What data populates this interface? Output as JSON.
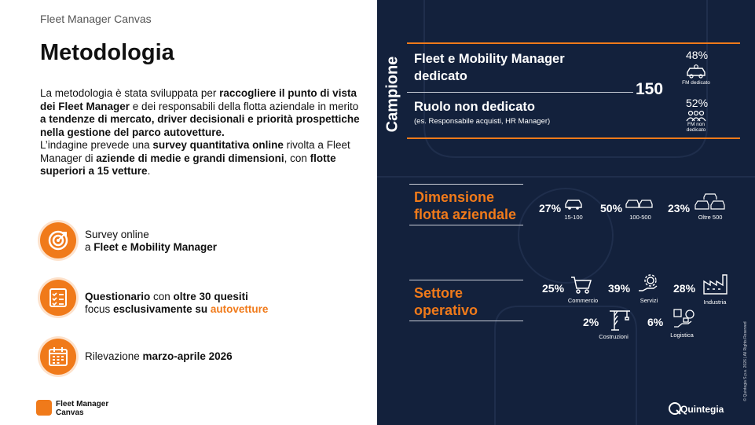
{
  "header": {
    "eyebrow": "Fleet Manager Canvas",
    "title": "Metodologia"
  },
  "paragraph": {
    "p1": "La metodologia è stata sviluppata per ",
    "p1b": "raccogliere il punto di vista dei Fleet Manager",
    "p2": " e dei responsabili della flotta aziendale in merito ",
    "p2b": "a tendenze di mercato, driver decisionali e priorità prospettiche nella gestione del parco autovetture.",
    "p3": "L’indagine prevede una ",
    "p3b": "survey quantitativa online",
    "p4": " rivolta a Fleet Manager di ",
    "p4b": "aziende di medie e grandi dimensioni",
    "p5": ", con ",
    "p5b": "flotte superiori a 15 vetture",
    "p6": "."
  },
  "features": [
    {
      "icon": "target-icon",
      "line1": "Survey online",
      "line2a": "a ",
      "line2b": "Fleet e Mobility Manager"
    },
    {
      "icon": "checklist-icon",
      "l1b": "Questionario",
      "l1": " con ",
      "l1b2": "oltre 30 quesiti",
      "l2": "focus ",
      "l2b": "esclusivamente su ",
      "l2o": "autovetture"
    },
    {
      "icon": "calendar-icon",
      "a": "Rilevazione ",
      "b": "marzo-aprile 2026"
    }
  ],
  "footer": {
    "logo_line1": "Fleet Manager",
    "logo_line2": "Canvas",
    "brand": "Quintegia",
    "copyright": "© Quintegia S.p.a. 2026 | All Rights Reserved"
  },
  "sample": {
    "label": "Campione",
    "total": "150",
    "row1": {
      "title": "Fleet e Mobility Manager dedicato",
      "pct": "48%",
      "caption": "FM dedicato"
    },
    "row2": {
      "title": "Ruolo non dedicato",
      "sub": "(es. Responsabile acquisti, HR Manager)",
      "pct": "52%",
      "caption": "FM non dedicato"
    }
  },
  "fleet": {
    "title": "Dimensione flotta aziendale",
    "items": [
      {
        "pct": "27%",
        "caption": "15-100"
      },
      {
        "pct": "50%",
        "caption": "100-500"
      },
      {
        "pct": "23%",
        "caption": "Oltre 500"
      }
    ]
  },
  "sector": {
    "title": "Settore operativo",
    "items": [
      {
        "pct": "25%",
        "caption": "Commercio",
        "icon": "cart-icon"
      },
      {
        "pct": "39%",
        "caption": "Servizi",
        "icon": "gear-hand-icon"
      },
      {
        "pct": "28%",
        "caption": "Industria",
        "icon": "factory-icon"
      },
      {
        "pct": "2%",
        "caption": "Costruzioni",
        "icon": "crane-icon"
      },
      {
        "pct": "6%",
        "caption": "Logistica",
        "icon": "logistics-icon"
      }
    ]
  },
  "colors": {
    "accent": "#f07a1a",
    "panel": "#13213c"
  }
}
